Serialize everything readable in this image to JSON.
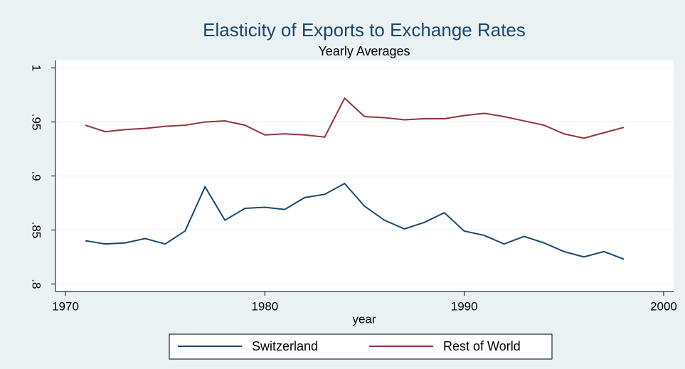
{
  "chart_data": {
    "type": "line",
    "title": "Elasticity of Exports to Exchange Rates",
    "subtitle": "Yearly Averages",
    "x_label": "year",
    "x": [
      1971,
      1972,
      1973,
      1974,
      1975,
      1976,
      1977,
      1978,
      1979,
      1980,
      1981,
      1982,
      1983,
      1984,
      1985,
      1986,
      1987,
      1988,
      1989,
      1990,
      1991,
      1992,
      1993,
      1994,
      1995,
      1996,
      1997,
      1998
    ],
    "series": [
      {
        "name": "Switzerland",
        "color": "#1a476f",
        "values": [
          0.84,
          0.837,
          0.838,
          0.842,
          0.837,
          0.849,
          0.89,
          0.859,
          0.87,
          0.871,
          0.869,
          0.88,
          0.883,
          0.893,
          0.872,
          0.859,
          0.851,
          0.857,
          0.866,
          0.849,
          0.845,
          0.837,
          0.844,
          0.838,
          0.83,
          0.825,
          0.83,
          0.823
        ]
      },
      {
        "name": "Rest of World",
        "color": "#90353b",
        "values": [
          0.947,
          0.941,
          0.943,
          0.944,
          0.946,
          0.947,
          0.95,
          0.951,
          0.947,
          0.938,
          0.939,
          0.938,
          0.936,
          0.972,
          0.955,
          0.954,
          0.952,
          0.953,
          0.953,
          0.956,
          0.958,
          0.955,
          0.951,
          0.947,
          0.939,
          0.935,
          0.94,
          0.945
        ]
      }
    ],
    "xlim": [
      1969.5,
      2000.5
    ],
    "xticks": [
      1970,
      1980,
      1990,
      2000
    ],
    "ylim": [
      0.793,
      1.007
    ],
    "yticks": [
      {
        "value": 0.8,
        "label": ".8"
      },
      {
        "value": 0.85,
        "label": ".85"
      },
      {
        "value": 0.9,
        "label": ".9"
      },
      {
        "value": 0.95,
        "label": ".95"
      },
      1
    ],
    "grid": true,
    "legend": "bottom"
  }
}
